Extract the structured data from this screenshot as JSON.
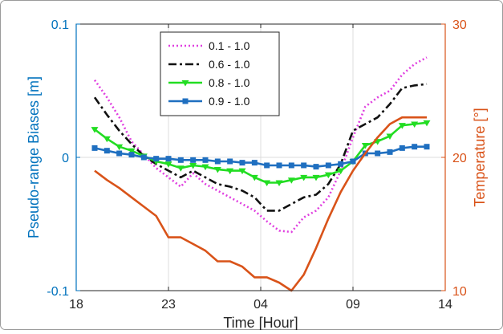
{
  "chart_data": {
    "type": "line",
    "xlabel": "Time [Hour]",
    "ylabel_left": "Pseudo-range Biases [m]",
    "ylabel_right": "Temperature [°]",
    "x_range": [
      0,
      30
    ],
    "x_ticks": [
      {
        "pos": 0,
        "label": "18"
      },
      {
        "pos": 7.5,
        "label": "23"
      },
      {
        "pos": 15,
        "label": "04"
      },
      {
        "pos": 22.5,
        "label": "09"
      },
      {
        "pos": 30,
        "label": "14"
      }
    ],
    "ylim_left": [
      -0.1,
      0.1
    ],
    "y_ticks_left": [
      {
        "value": 0.1,
        "label": "0.1"
      },
      {
        "value": 0,
        "label": "0"
      },
      {
        "value": -0.1,
        "label": "-0.1"
      }
    ],
    "ylim_right": [
      10,
      30
    ],
    "y_ticks_right": [
      {
        "value": 30,
        "label": "30"
      },
      {
        "value": 20,
        "label": "20"
      },
      {
        "value": 10,
        "label": "10"
      }
    ],
    "grid": true,
    "legend_position": "top-left",
    "x": [
      1.5,
      2.5,
      3.5,
      4.5,
      5.5,
      6.5,
      7.5,
      8.5,
      9.5,
      10.5,
      11.5,
      12.5,
      13.5,
      14.5,
      15.5,
      16.5,
      17.5,
      18.5,
      19.5,
      20.5,
      21.5,
      22.5,
      23.5,
      24.5,
      25.5,
      26.5,
      27.5,
      28.5
    ],
    "series": [
      {
        "name": "0.1 - 1.0",
        "axis": "left",
        "color": "#e040e0",
        "style": "dotted",
        "marker": "none",
        "values": [
          0.058,
          0.045,
          0.03,
          0.012,
          0.002,
          -0.008,
          -0.015,
          -0.022,
          -0.012,
          -0.02,
          -0.025,
          -0.03,
          -0.035,
          -0.04,
          -0.048,
          -0.055,
          -0.056,
          -0.045,
          -0.04,
          -0.03,
          -0.01,
          0.015,
          0.038,
          0.045,
          0.05,
          0.062,
          0.07,
          0.075
        ]
      },
      {
        "name": "0.6 - 1.0",
        "axis": "left",
        "color": "#111111",
        "style": "dashdot",
        "marker": "none",
        "values": [
          0.045,
          0.032,
          0.02,
          0.01,
          0.001,
          -0.005,
          -0.01,
          -0.015,
          -0.01,
          -0.015,
          -0.02,
          -0.022,
          -0.025,
          -0.03,
          -0.04,
          -0.04,
          -0.035,
          -0.03,
          -0.028,
          -0.02,
          -0.005,
          0.02,
          0.025,
          0.03,
          0.04,
          0.052,
          0.054,
          0.055
        ]
      },
      {
        "name": "0.8 - 1.0",
        "axis": "left",
        "color": "#22dd22",
        "style": "solid",
        "marker": "triangle",
        "values": [
          0.021,
          0.014,
          0.008,
          0.005,
          0.001,
          -0.003,
          -0.005,
          -0.008,
          -0.006,
          -0.007,
          -0.009,
          -0.01,
          -0.01,
          -0.015,
          -0.019,
          -0.019,
          -0.017,
          -0.015,
          -0.015,
          -0.013,
          -0.01,
          -0.003,
          0.009,
          0.012,
          0.016,
          0.024,
          0.025,
          0.026
        ]
      },
      {
        "name": "0.9 - 1.0",
        "axis": "left",
        "color": "#1f6fc0",
        "style": "solid",
        "marker": "square",
        "values": [
          0.007,
          0.005,
          0.003,
          0.002,
          0.0,
          -0.001,
          -0.001,
          -0.002,
          -0.002,
          -0.002,
          -0.003,
          -0.003,
          -0.004,
          -0.004,
          -0.006,
          -0.006,
          -0.006,
          -0.006,
          -0.007,
          -0.006,
          -0.005,
          -0.003,
          0.003,
          0.003,
          0.004,
          0.007,
          0.008,
          0.008
        ]
      },
      {
        "name": "",
        "axis": "right",
        "color": "#d95319",
        "style": "solid",
        "marker": "none",
        "values": [
          19,
          18.3,
          17.7,
          17,
          16.3,
          15.6,
          14,
          14,
          13.5,
          13,
          12.2,
          12.2,
          11.8,
          11,
          11,
          10.6,
          10,
          11.2,
          13.2,
          15.4,
          17.4,
          19,
          20.3,
          21.5,
          22.5,
          23,
          23,
          23
        ]
      }
    ]
  }
}
